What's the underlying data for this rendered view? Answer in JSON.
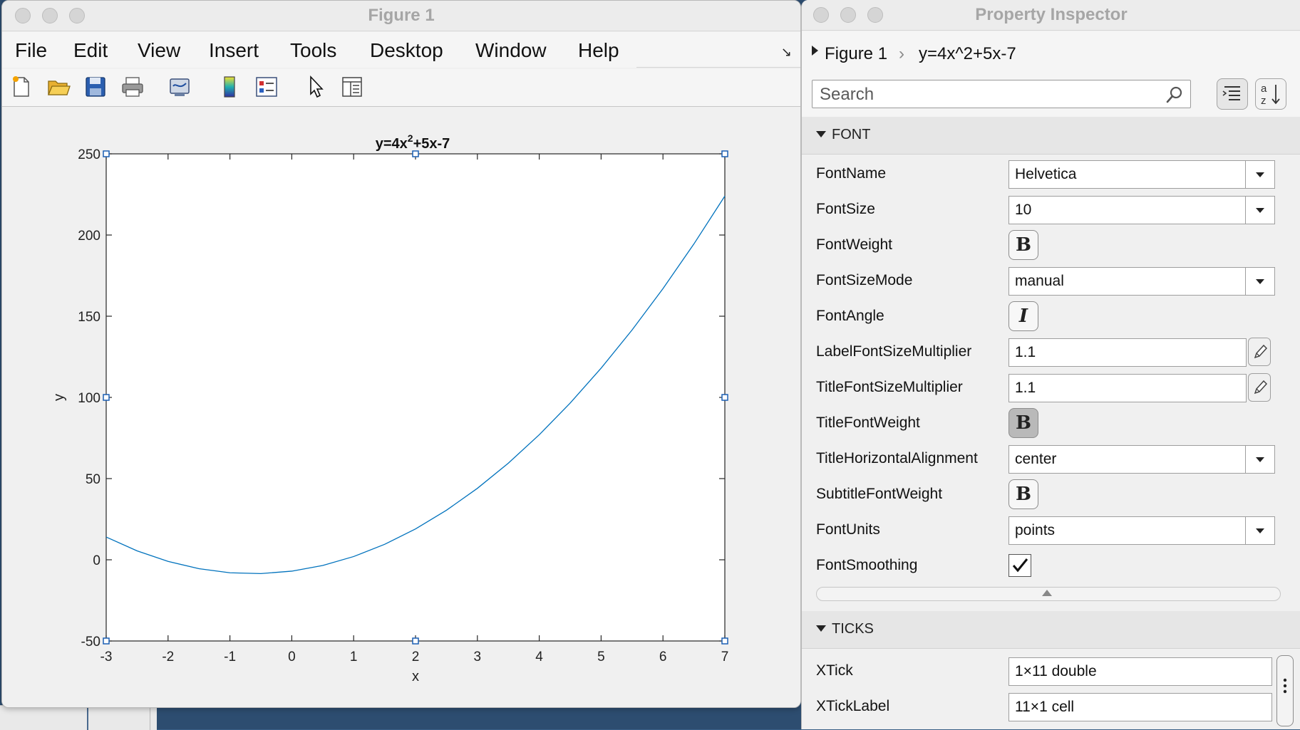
{
  "figure_window": {
    "title": "Figure 1",
    "menus": [
      "File",
      "Edit",
      "View",
      "Insert",
      "Tools",
      "Desktop",
      "Window",
      "Help"
    ]
  },
  "chart_data": {
    "type": "line",
    "title": "y=4x^2+5x-7",
    "title_parts": {
      "base": "y=4x",
      "sup": "2",
      "rest": "+5x-7"
    },
    "xlabel": "x",
    "ylabel": "y",
    "xlim": [
      -3,
      7
    ],
    "ylim": [
      -50,
      250
    ],
    "xticks": [
      -3,
      -2,
      -1,
      0,
      1,
      2,
      3,
      4,
      5,
      6,
      7
    ],
    "yticks": [
      -50,
      0,
      50,
      100,
      150,
      200,
      250
    ],
    "grid": false,
    "series": [
      {
        "color": "#0072bd",
        "x": [
          -3,
          -2.5,
          -2,
          -1.5,
          -1,
          -0.5,
          0,
          0.5,
          1,
          1.5,
          2,
          2.5,
          3,
          3.5,
          4,
          4.5,
          5,
          5.5,
          6,
          6.5,
          7
        ],
        "y": [
          14,
          5.5,
          -1,
          -5.5,
          -8,
          -8.5,
          -7,
          -3.5,
          2,
          9.5,
          19,
          30.5,
          44,
          59.5,
          77,
          96.5,
          118,
          141.5,
          167,
          194.5,
          224
        ]
      }
    ]
  },
  "inspector": {
    "title": "Property Inspector",
    "breadcrumb": [
      "Figure 1",
      "y=4x^2+5x-7"
    ],
    "search_placeholder": "Search",
    "font_section": "FONT",
    "ticks_section": "TICKS",
    "font_props": [
      {
        "label": "FontName",
        "kind": "dropdown",
        "value": "Helvetica"
      },
      {
        "label": "FontSize",
        "kind": "dropdown",
        "value": "10"
      },
      {
        "label": "FontWeight",
        "kind": "toggle",
        "value": "B",
        "on": false
      },
      {
        "label": "FontSizeMode",
        "kind": "dropdown",
        "value": "manual"
      },
      {
        "label": "FontAngle",
        "kind": "toggle",
        "value": "I",
        "on": false
      },
      {
        "label": "LabelFontSizeMultiplier",
        "kind": "edit",
        "value": "1.1"
      },
      {
        "label": "TitleFontSizeMultiplier",
        "kind": "edit",
        "value": "1.1"
      },
      {
        "label": "TitleFontWeight",
        "kind": "toggle",
        "value": "B",
        "on": true
      },
      {
        "label": "TitleHorizontalAlignment",
        "kind": "dropdown",
        "value": "center"
      },
      {
        "label": "SubtitleFontWeight",
        "kind": "toggle",
        "value": "B",
        "on": false
      },
      {
        "label": "FontUnits",
        "kind": "dropdown",
        "value": "points"
      },
      {
        "label": "FontSmoothing",
        "kind": "checkbox",
        "value": "",
        "checked": true
      }
    ],
    "tick_props": [
      {
        "label": "XTick",
        "value": "1×11 double"
      },
      {
        "label": "XTickLabel",
        "value": "11×1 cell"
      }
    ]
  }
}
